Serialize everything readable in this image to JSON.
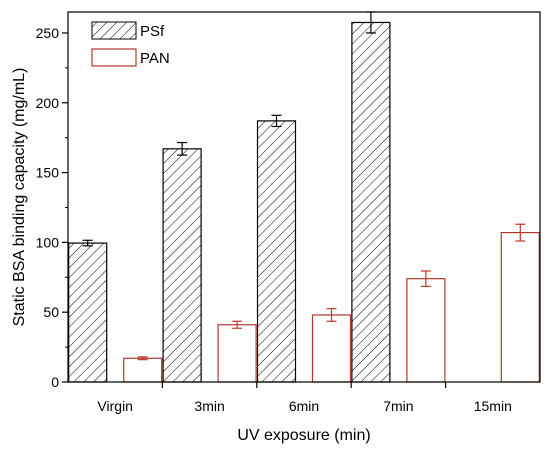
{
  "chart_data": {
    "type": "bar",
    "title": "",
    "xlabel": "UV exposure (min)",
    "ylabel": "Static BSA binding capacity (mg/mL)",
    "categories": [
      "Virgin",
      "3min",
      "6min",
      "7min",
      "15min"
    ],
    "ylim": [
      0,
      265
    ],
    "yticks": [
      0,
      50,
      100,
      150,
      200,
      250
    ],
    "grid": false,
    "legend_position": "top-left",
    "series": [
      {
        "name": "PSf",
        "values": [
          99.5,
          167,
          187,
          257.5,
          null
        ],
        "errors": [
          2,
          4.5,
          4,
          7.5,
          null
        ],
        "color": "#000000",
        "fill": "hatched",
        "error_color": "#000000"
      },
      {
        "name": "PAN",
        "values": [
          17,
          41,
          48,
          74,
          107
        ],
        "errors": [
          1,
          2.5,
          4.5,
          5.5,
          6
        ],
        "color": "#b03a2e",
        "fill": "none",
        "error_color": "#c0392b"
      }
    ]
  }
}
